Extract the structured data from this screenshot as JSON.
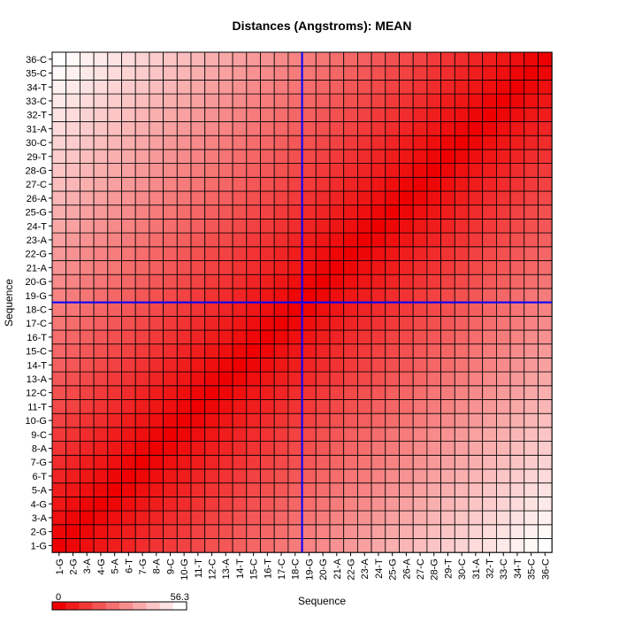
{
  "chart_data": {
    "type": "heatmap",
    "title": "Distances (Angstroms):  MEAN",
    "xlabel": "Sequence",
    "ylabel": "Sequence",
    "labels": [
      "1-G",
      "2-G",
      "3-A",
      "4-G",
      "5-A",
      "6-T",
      "7-G",
      "8-A",
      "9-C",
      "10-G",
      "11-T",
      "12-C",
      "13-A",
      "14-T",
      "15-C",
      "16-T",
      "17-C",
      "18-C",
      "19-G",
      "20-G",
      "21-A",
      "22-G",
      "23-A",
      "24-T",
      "25-G",
      "26-A",
      "27-C",
      "28-G",
      "29-T",
      "30-C",
      "31-A",
      "32-T",
      "33-C",
      "34-T",
      "35-C",
      "36-C"
    ],
    "value_model": "value(i,j) = 56.3 * |i-j| / 35",
    "zlim": [
      0,
      56.3
    ],
    "colorbar_labels": [
      "0",
      "56.3"
    ],
    "colorscale": {
      "low": "#ee0000",
      "high": "#ffffff"
    },
    "grid": true,
    "crosshair": {
      "x_after": "18-C",
      "y_after": "18-C",
      "color": "#0000ff"
    }
  }
}
